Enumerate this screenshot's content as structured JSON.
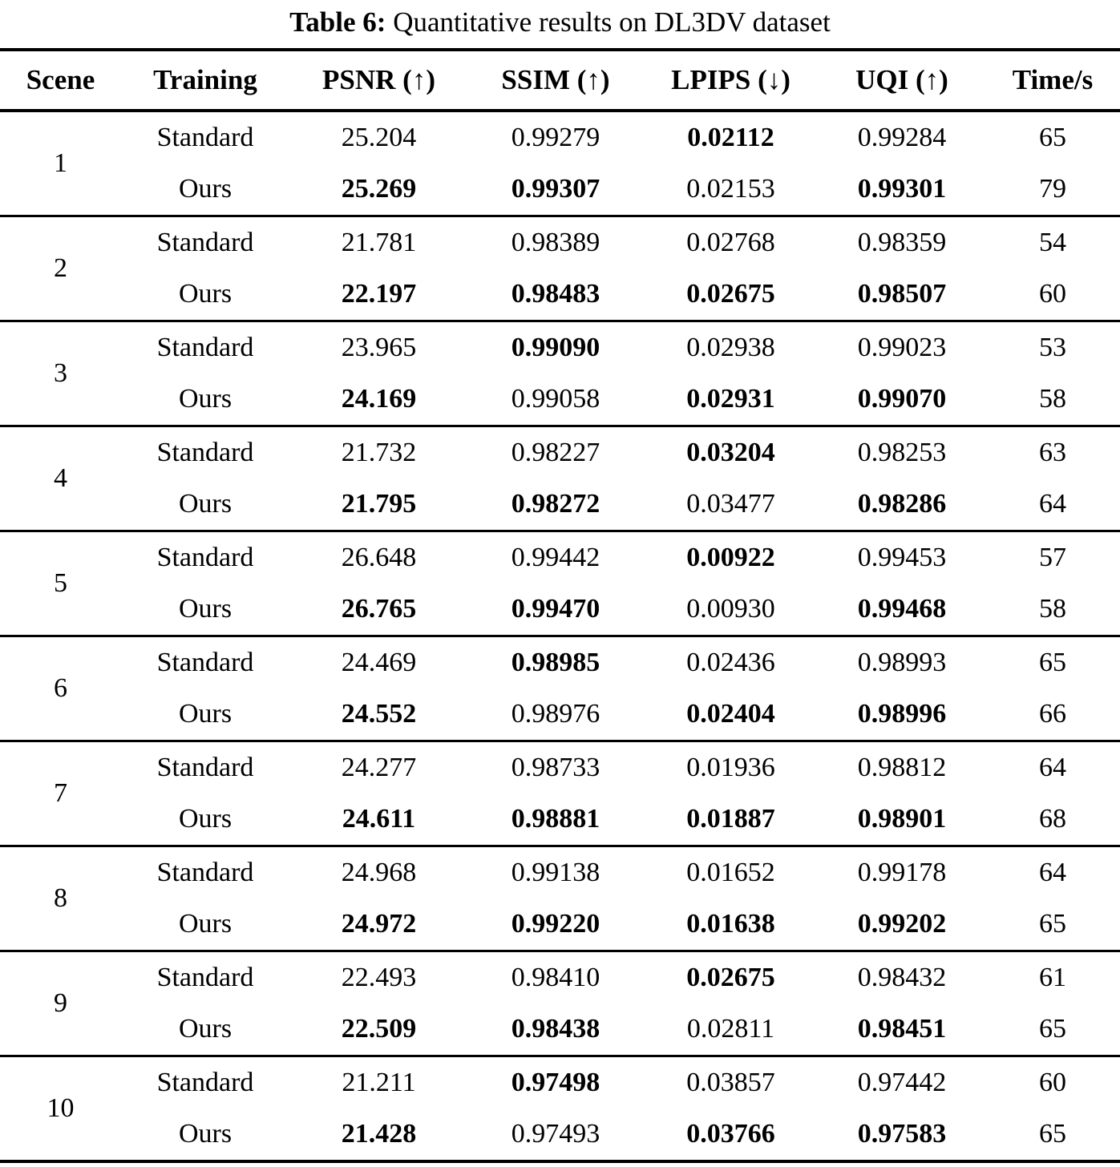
{
  "colors": {
    "background": "#ffffff",
    "text": "#000000",
    "rule": "#000000"
  },
  "caption": {
    "label": "Table 6:",
    "text": "Quantitative results on DL3DV dataset"
  },
  "table": {
    "columns": [
      "Scene",
      "Training",
      "PSNR (↑)",
      "SSIM (↑)",
      "LPIPS (↓)",
      "UQI (↑)",
      "Time/s"
    ],
    "metric_keys": [
      "psnr",
      "ssim",
      "lpips",
      "uqi",
      "time"
    ],
    "groups": [
      {
        "scene": "1",
        "rows": [
          {
            "training": "Standard",
            "cells": [
              {
                "v": "25.204",
                "b": false
              },
              {
                "v": "0.99279",
                "b": false
              },
              {
                "v": "0.02112",
                "b": true
              },
              {
                "v": "0.99284",
                "b": false
              },
              {
                "v": "65",
                "b": false
              }
            ]
          },
          {
            "training": "Ours",
            "cells": [
              {
                "v": "25.269",
                "b": true
              },
              {
                "v": "0.99307",
                "b": true
              },
              {
                "v": "0.02153",
                "b": false
              },
              {
                "v": "0.99301",
                "b": true
              },
              {
                "v": "79",
                "b": false
              }
            ]
          }
        ]
      },
      {
        "scene": "2",
        "rows": [
          {
            "training": "Standard",
            "cells": [
              {
                "v": "21.781",
                "b": false
              },
              {
                "v": "0.98389",
                "b": false
              },
              {
                "v": "0.02768",
                "b": false
              },
              {
                "v": "0.98359",
                "b": false
              },
              {
                "v": "54",
                "b": false
              }
            ]
          },
          {
            "training": "Ours",
            "cells": [
              {
                "v": "22.197",
                "b": true
              },
              {
                "v": "0.98483",
                "b": true
              },
              {
                "v": "0.02675",
                "b": true
              },
              {
                "v": "0.98507",
                "b": true
              },
              {
                "v": "60",
                "b": false
              }
            ]
          }
        ]
      },
      {
        "scene": "3",
        "rows": [
          {
            "training": "Standard",
            "cells": [
              {
                "v": "23.965",
                "b": false
              },
              {
                "v": "0.99090",
                "b": true
              },
              {
                "v": "0.02938",
                "b": false
              },
              {
                "v": "0.99023",
                "b": false
              },
              {
                "v": "53",
                "b": false
              }
            ]
          },
          {
            "training": "Ours",
            "cells": [
              {
                "v": "24.169",
                "b": true
              },
              {
                "v": "0.99058",
                "b": false
              },
              {
                "v": "0.02931",
                "b": true
              },
              {
                "v": "0.99070",
                "b": true
              },
              {
                "v": "58",
                "b": false
              }
            ]
          }
        ]
      },
      {
        "scene": "4",
        "rows": [
          {
            "training": "Standard",
            "cells": [
              {
                "v": "21.732",
                "b": false
              },
              {
                "v": "0.98227",
                "b": false
              },
              {
                "v": "0.03204",
                "b": true
              },
              {
                "v": "0.98253",
                "b": false
              },
              {
                "v": "63",
                "b": false
              }
            ]
          },
          {
            "training": "Ours",
            "cells": [
              {
                "v": "21.795",
                "b": true
              },
              {
                "v": "0.98272",
                "b": true
              },
              {
                "v": "0.03477",
                "b": false
              },
              {
                "v": "0.98286",
                "b": true
              },
              {
                "v": "64",
                "b": false
              }
            ]
          }
        ]
      },
      {
        "scene": "5",
        "rows": [
          {
            "training": "Standard",
            "cells": [
              {
                "v": "26.648",
                "b": false
              },
              {
                "v": "0.99442",
                "b": false
              },
              {
                "v": "0.00922",
                "b": true
              },
              {
                "v": "0.99453",
                "b": false
              },
              {
                "v": "57",
                "b": false
              }
            ]
          },
          {
            "training": "Ours",
            "cells": [
              {
                "v": "26.765",
                "b": true
              },
              {
                "v": "0.99470",
                "b": true
              },
              {
                "v": "0.00930",
                "b": false
              },
              {
                "v": "0.99468",
                "b": true
              },
              {
                "v": "58",
                "b": false
              }
            ]
          }
        ]
      },
      {
        "scene": "6",
        "rows": [
          {
            "training": "Standard",
            "cells": [
              {
                "v": "24.469",
                "b": false
              },
              {
                "v": "0.98985",
                "b": true
              },
              {
                "v": "0.02436",
                "b": false
              },
              {
                "v": "0.98993",
                "b": false
              },
              {
                "v": "65",
                "b": false
              }
            ]
          },
          {
            "training": "Ours",
            "cells": [
              {
                "v": "24.552",
                "b": true
              },
              {
                "v": "0.98976",
                "b": false
              },
              {
                "v": "0.02404",
                "b": true
              },
              {
                "v": "0.98996",
                "b": true
              },
              {
                "v": "66",
                "b": false
              }
            ]
          }
        ]
      },
      {
        "scene": "7",
        "rows": [
          {
            "training": "Standard",
            "cells": [
              {
                "v": "24.277",
                "b": false
              },
              {
                "v": "0.98733",
                "b": false
              },
              {
                "v": "0.01936",
                "b": false
              },
              {
                "v": "0.98812",
                "b": false
              },
              {
                "v": "64",
                "b": false
              }
            ]
          },
          {
            "training": "Ours",
            "cells": [
              {
                "v": "24.611",
                "b": true
              },
              {
                "v": "0.98881",
                "b": true
              },
              {
                "v": "0.01887",
                "b": true
              },
              {
                "v": "0.98901",
                "b": true
              },
              {
                "v": "68",
                "b": false
              }
            ]
          }
        ]
      },
      {
        "scene": "8",
        "rows": [
          {
            "training": "Standard",
            "cells": [
              {
                "v": "24.968",
                "b": false
              },
              {
                "v": "0.99138",
                "b": false
              },
              {
                "v": "0.01652",
                "b": false
              },
              {
                "v": "0.99178",
                "b": false
              },
              {
                "v": "64",
                "b": false
              }
            ]
          },
          {
            "training": "Ours",
            "cells": [
              {
                "v": "24.972",
                "b": true
              },
              {
                "v": "0.99220",
                "b": true
              },
              {
                "v": "0.01638",
                "b": true
              },
              {
                "v": "0.99202",
                "b": true
              },
              {
                "v": "65",
                "b": false
              }
            ]
          }
        ]
      },
      {
        "scene": "9",
        "rows": [
          {
            "training": "Standard",
            "cells": [
              {
                "v": "22.493",
                "b": false
              },
              {
                "v": "0.98410",
                "b": false
              },
              {
                "v": "0.02675",
                "b": true
              },
              {
                "v": "0.98432",
                "b": false
              },
              {
                "v": "61",
                "b": false
              }
            ]
          },
          {
            "training": "Ours",
            "cells": [
              {
                "v": "22.509",
                "b": true
              },
              {
                "v": "0.98438",
                "b": true
              },
              {
                "v": "0.02811",
                "b": false
              },
              {
                "v": "0.98451",
                "b": true
              },
              {
                "v": "65",
                "b": false
              }
            ]
          }
        ]
      },
      {
        "scene": "10",
        "rows": [
          {
            "training": "Standard",
            "cells": [
              {
                "v": "21.211",
                "b": false
              },
              {
                "v": "0.97498",
                "b": true
              },
              {
                "v": "0.03857",
                "b": false
              },
              {
                "v": "0.97442",
                "b": false
              },
              {
                "v": "60",
                "b": false
              }
            ]
          },
          {
            "training": "Ours",
            "cells": [
              {
                "v": "21.428",
                "b": true
              },
              {
                "v": "0.97493",
                "b": false
              },
              {
                "v": "0.03766",
                "b": true
              },
              {
                "v": "0.97583",
                "b": true
              },
              {
                "v": "65",
                "b": false
              }
            ]
          }
        ]
      }
    ]
  }
}
